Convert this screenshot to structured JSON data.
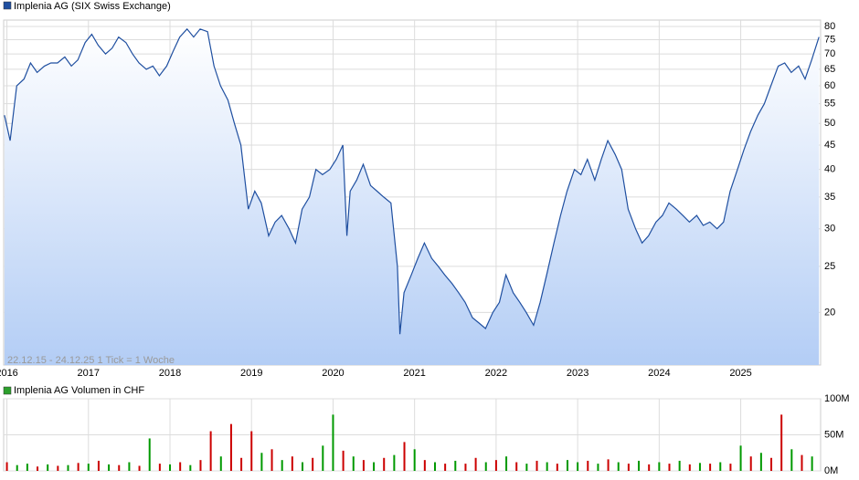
{
  "chart_data": [
    {
      "type": "line",
      "annotation": "22.12.15 - 24.12.25   1 Tick = 1 Woche",
      "log_scale": true,
      "grid": true,
      "xlim": [
        2015.96,
        2025.98
      ],
      "xticks": [
        2016,
        2017,
        2018,
        2019,
        2020,
        2021,
        2022,
        2023,
        2024,
        2025
      ],
      "ylim": [
        15.5,
        82.5
      ],
      "yticks": [
        20,
        25,
        30,
        35,
        40,
        45,
        50,
        55,
        60,
        65,
        70,
        75,
        80
      ],
      "x": [
        2015.97,
        2016.04,
        2016.12,
        2016.21,
        2016.29,
        2016.37,
        2016.46,
        2016.54,
        2016.62,
        2016.71,
        2016.79,
        2016.87,
        2016.96,
        2017.04,
        2017.12,
        2017.21,
        2017.29,
        2017.37,
        2017.46,
        2017.54,
        2017.62,
        2017.71,
        2017.79,
        2017.87,
        2017.96,
        2018.04,
        2018.12,
        2018.21,
        2018.29,
        2018.37,
        2018.46,
        2018.54,
        2018.62,
        2018.71,
        2018.79,
        2018.87,
        2018.96,
        2019.04,
        2019.12,
        2019.21,
        2019.29,
        2019.37,
        2019.46,
        2019.54,
        2019.62,
        2019.71,
        2019.79,
        2019.87,
        2019.96,
        2020.04,
        2020.12,
        2020.17,
        2020.21,
        2020.29,
        2020.37,
        2020.46,
        2020.54,
        2020.62,
        2020.71,
        2020.79,
        2020.82,
        2020.87,
        2020.96,
        2021.04,
        2021.12,
        2021.21,
        2021.29,
        2021.37,
        2021.46,
        2021.54,
        2021.62,
        2021.71,
        2021.79,
        2021.87,
        2021.96,
        2022.04,
        2022.12,
        2022.21,
        2022.29,
        2022.37,
        2022.46,
        2022.54,
        2022.62,
        2022.71,
        2022.79,
        2022.87,
        2022.96,
        2023.04,
        2023.12,
        2023.21,
        2023.29,
        2023.37,
        2023.46,
        2023.54,
        2023.62,
        2023.71,
        2023.79,
        2023.87,
        2023.96,
        2024.04,
        2024.12,
        2024.21,
        2024.29,
        2024.37,
        2024.46,
        2024.54,
        2024.62,
        2024.71,
        2024.79,
        2024.87,
        2024.96,
        2025.04,
        2025.12,
        2025.21,
        2025.29,
        2025.37,
        2025.46,
        2025.54,
        2025.62,
        2025.71,
        2025.79,
        2025.87,
        2025.96
      ],
      "series": [
        {
          "name": "Implenia AG (SIX Swiss Exchange)",
          "color": "#1f4fa0",
          "values": [
            52,
            46,
            60,
            62,
            67,
            64,
            66,
            67,
            67,
            69,
            66,
            68,
            74,
            77,
            73,
            70,
            72,
            76,
            74,
            70,
            67,
            65,
            66,
            63,
            66,
            71,
            76,
            79,
            76,
            79,
            78,
            66,
            60,
            56,
            50,
            45,
            33,
            36,
            34,
            29,
            31,
            32,
            30,
            28,
            33,
            35,
            40,
            39,
            40,
            42,
            45,
            29,
            36,
            38,
            41,
            37,
            36,
            35,
            34,
            25,
            18,
            22,
            24,
            26,
            28,
            26,
            25,
            24,
            23,
            22,
            21,
            19.5,
            19,
            18.5,
            20,
            21,
            24,
            22,
            21,
            20,
            18.8,
            21,
            24,
            28,
            32,
            36,
            40,
            39,
            42,
            38,
            42,
            46,
            43,
            40,
            33,
            30,
            28,
            29,
            31,
            32,
            34,
            33,
            32,
            31,
            32,
            30.5,
            31,
            30,
            31,
            36,
            40,
            44,
            48,
            52,
            55,
            60,
            66,
            67,
            64,
            66,
            62,
            68,
            76
          ]
        }
      ]
    },
    {
      "type": "bar",
      "xlim": [
        2015.96,
        2025.98
      ],
      "ylim": [
        0,
        100
      ],
      "yticks": [
        {
          "value": 0,
          "label": "0M"
        },
        {
          "value": 50,
          "label": "50M"
        },
        {
          "value": 100,
          "label": "100M"
        }
      ],
      "x": [
        2016.0,
        2016.125,
        2016.25,
        2016.375,
        2016.5,
        2016.625,
        2016.75,
        2016.875,
        2017.0,
        2017.125,
        2017.25,
        2017.375,
        2017.5,
        2017.625,
        2017.75,
        2017.875,
        2018.0,
        2018.125,
        2018.25,
        2018.375,
        2018.5,
        2018.625,
        2018.75,
        2018.875,
        2019.0,
        2019.125,
        2019.25,
        2019.375,
        2019.5,
        2019.625,
        2019.75,
        2019.875,
        2020.0,
        2020.125,
        2020.25,
        2020.375,
        2020.5,
        2020.625,
        2020.75,
        2020.875,
        2021.0,
        2021.125,
        2021.25,
        2021.375,
        2021.5,
        2021.625,
        2021.75,
        2021.875,
        2022.0,
        2022.125,
        2022.25,
        2022.375,
        2022.5,
        2022.625,
        2022.75,
        2022.875,
        2023.0,
        2023.125,
        2023.25,
        2023.375,
        2023.5,
        2023.625,
        2023.75,
        2023.875,
        2024.0,
        2024.125,
        2024.25,
        2024.375,
        2024.5,
        2024.625,
        2024.75,
        2024.875,
        2025.0,
        2025.125,
        2025.25,
        2025.375,
        2025.5,
        2025.625,
        2025.75,
        2025.875
      ],
      "series": [
        {
          "name": "Implenia AG Volumen in CHF",
          "color": "#2ca02c",
          "values": [
            12,
            8,
            10,
            6,
            9,
            7,
            8,
            11,
            10,
            14,
            9,
            8,
            12,
            7,
            45,
            10,
            9,
            12,
            8,
            15,
            55,
            20,
            65,
            18,
            55,
            25,
            30,
            15,
            20,
            12,
            18,
            35,
            78,
            28,
            20,
            15,
            12,
            18,
            22,
            40,
            30,
            15,
            12,
            10,
            14,
            10,
            18,
            12,
            15,
            20,
            12,
            10,
            14,
            12,
            10,
            15,
            12,
            14,
            10,
            16,
            12,
            10,
            14,
            9,
            12,
            10,
            14,
            9,
            11,
            10,
            12,
            10,
            35,
            20,
            25,
            18,
            78,
            30,
            22,
            20
          ],
          "colors": [
            "#c00",
            "#090",
            "#090",
            "#c00",
            "#090",
            "#c00",
            "#090",
            "#c00",
            "#090",
            "#c00",
            "#090",
            "#c00",
            "#090",
            "#c00",
            "#090",
            "#c00",
            "#090",
            "#c00",
            "#090",
            "#c00",
            "#c00",
            "#090",
            "#c00",
            "#c00",
            "#c00",
            "#090",
            "#c00",
            "#090",
            "#c00",
            "#090",
            "#c00",
            "#090",
            "#090",
            "#c00",
            "#090",
            "#c00",
            "#090",
            "#c00",
            "#090",
            "#c00",
            "#090",
            "#c00",
            "#090",
            "#c00",
            "#090",
            "#c00",
            "#c00",
            "#090",
            "#c00",
            "#090",
            "#c00",
            "#090",
            "#c00",
            "#090",
            "#c00",
            "#090",
            "#090",
            "#c00",
            "#090",
            "#c00",
            "#090",
            "#c00",
            "#090",
            "#c00",
            "#090",
            "#c00",
            "#090",
            "#c00",
            "#090",
            "#c00",
            "#090",
            "#c00",
            "#090",
            "#c00",
            "#090",
            "#c00",
            "#c00",
            "#090",
            "#c00",
            "#090"
          ]
        }
      ]
    }
  ]
}
